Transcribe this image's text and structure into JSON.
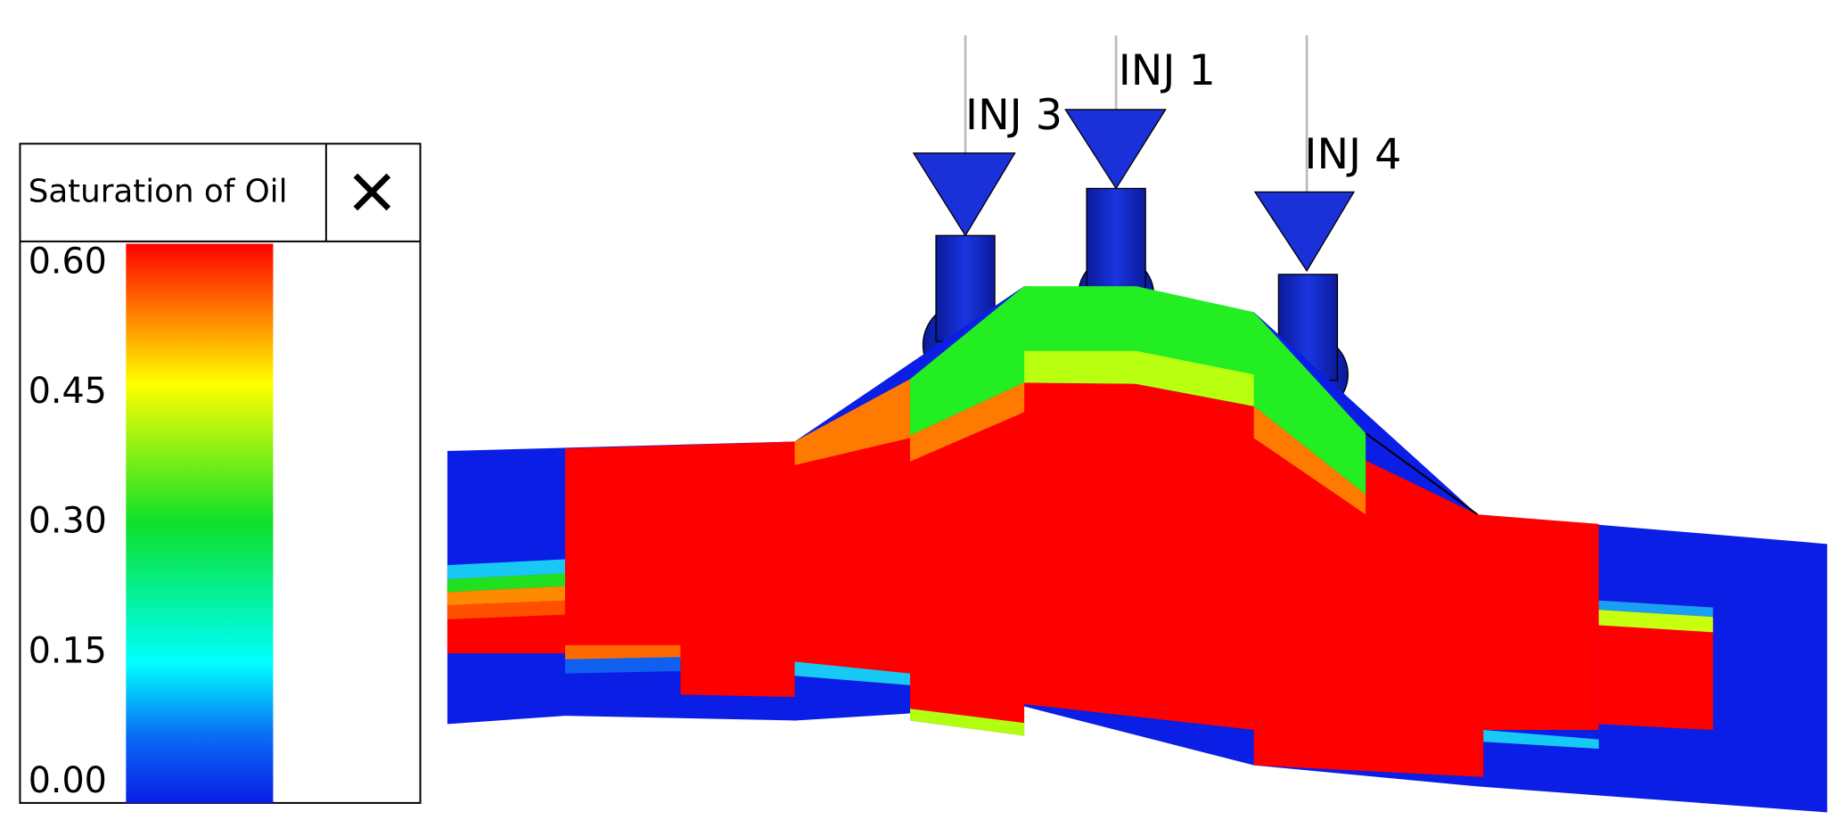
{
  "legend": {
    "title": "Saturation of Oil",
    "range": [
      0,
      0.6
    ],
    "ticks": [
      {
        "value": 0.6,
        "label": "0.60"
      },
      {
        "value": 0.45,
        "label": "0.45"
      },
      {
        "value": 0.3,
        "label": "0.30"
      },
      {
        "value": 0.15,
        "label": "0.15"
      },
      {
        "value": 0,
        "label": "0.00"
      }
    ]
  },
  "wells": [
    {
      "label": "INJ 1"
    },
    {
      "label": "INJ 3"
    },
    {
      "label": "INJ 4"
    }
  ]
}
